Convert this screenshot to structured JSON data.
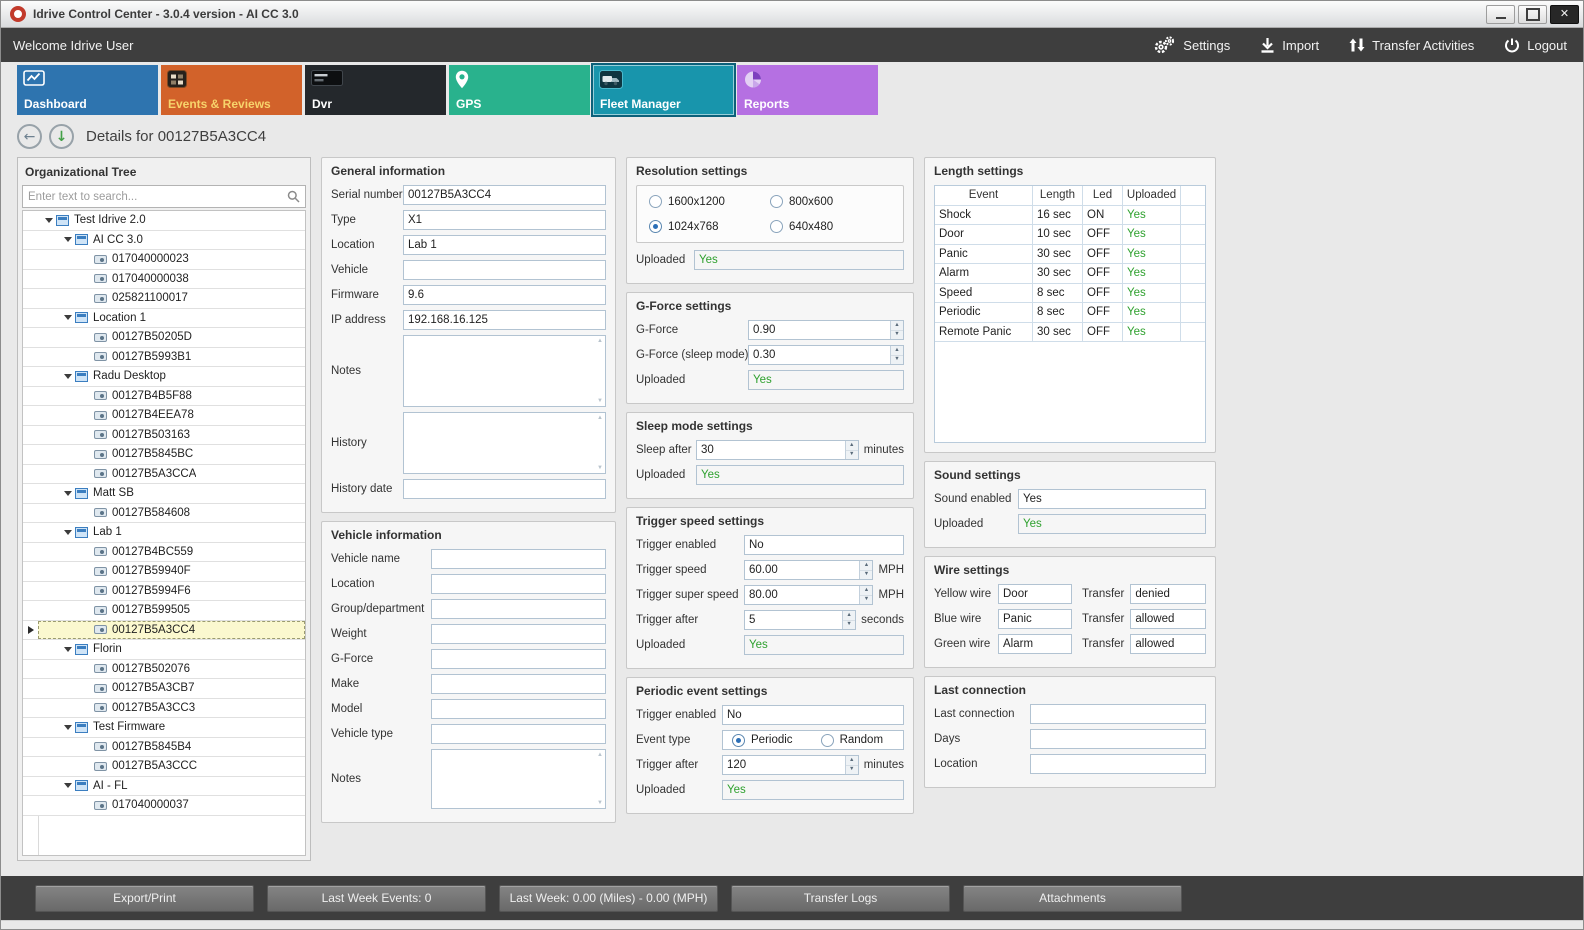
{
  "window": {
    "title": "Idrive Control Center - 3.0.4 version - AI CC 3.0"
  },
  "topbar": {
    "welcome": "Welcome Idrive User",
    "actions": [
      {
        "id": "settings",
        "label": "Settings"
      },
      {
        "id": "import",
        "label": "Import"
      },
      {
        "id": "transfer-activities",
        "label": "Transfer Activities"
      },
      {
        "id": "logout",
        "label": "Logout"
      }
    ]
  },
  "nav": {
    "tiles": [
      {
        "id": "dashboard",
        "label": "Dashboard",
        "color": "#2e74af",
        "selected": false
      },
      {
        "id": "events-reviews",
        "label": "Events & Reviews",
        "color": "#d2622a",
        "label_color": "#f7d36b",
        "selected": false
      },
      {
        "id": "dvr",
        "label": "Dvr",
        "color": "#24282c",
        "selected": false
      },
      {
        "id": "gps",
        "label": "GPS",
        "color": "#29b28d",
        "selected": false
      },
      {
        "id": "fleet-manager",
        "label": "Fleet Manager",
        "color": "#1895ac",
        "selected": true
      },
      {
        "id": "reports",
        "label": "Reports",
        "color": "#b570e2",
        "selected": false
      }
    ]
  },
  "details": {
    "title": "Details for 00127B5A3CC4"
  },
  "org_tree": {
    "title": "Organizational Tree",
    "search_placeholder": "Enter text to search...",
    "nodes": [
      {
        "label": "Test Idrive 2.0",
        "depth": 0,
        "kind": "group"
      },
      {
        "label": "AI CC 3.0",
        "depth": 1,
        "kind": "group"
      },
      {
        "label": "017040000023",
        "depth": 2,
        "kind": "device"
      },
      {
        "label": "017040000038",
        "depth": 2,
        "kind": "device"
      },
      {
        "label": "025821100017",
        "depth": 2,
        "kind": "device"
      },
      {
        "label": "Location 1",
        "depth": 1,
        "kind": "group"
      },
      {
        "label": "00127B50205D",
        "depth": 2,
        "kind": "device"
      },
      {
        "label": "00127B5993B1",
        "depth": 2,
        "kind": "device"
      },
      {
        "label": "Radu Desktop",
        "depth": 1,
        "kind": "group"
      },
      {
        "label": "00127B4B5F88",
        "depth": 2,
        "kind": "device"
      },
      {
        "label": "00127B4EEA78",
        "depth": 2,
        "kind": "device"
      },
      {
        "label": "00127B503163",
        "depth": 2,
        "kind": "device"
      },
      {
        "label": "00127B5845BC",
        "depth": 2,
        "kind": "device"
      },
      {
        "label": "00127B5A3CCA",
        "depth": 2,
        "kind": "device"
      },
      {
        "label": "Matt SB",
        "depth": 1,
        "kind": "group"
      },
      {
        "label": "00127B584608",
        "depth": 2,
        "kind": "device"
      },
      {
        "label": "Lab 1",
        "depth": 1,
        "kind": "group"
      },
      {
        "label": "00127B4BC559",
        "depth": 2,
        "kind": "device"
      },
      {
        "label": "00127B59940F",
        "depth": 2,
        "kind": "device"
      },
      {
        "label": "00127B5994F6",
        "depth": 2,
        "kind": "device"
      },
      {
        "label": "00127B599505",
        "depth": 2,
        "kind": "device"
      },
      {
        "label": "00127B5A3CC4",
        "depth": 2,
        "kind": "device",
        "selected": true
      },
      {
        "label": "Florin",
        "depth": 1,
        "kind": "group"
      },
      {
        "label": "00127B502076",
        "depth": 2,
        "kind": "device"
      },
      {
        "label": "00127B5A3CB7",
        "depth": 2,
        "kind": "device"
      },
      {
        "label": "00127B5A3CC3",
        "depth": 2,
        "kind": "device"
      },
      {
        "label": "Test Firmware",
        "depth": 1,
        "kind": "group"
      },
      {
        "label": "00127B5845B4",
        "depth": 2,
        "kind": "device"
      },
      {
        "label": "00127B5A3CCC",
        "depth": 2,
        "kind": "device"
      },
      {
        "label": "AI - FL",
        "depth": 1,
        "kind": "group"
      },
      {
        "label": "017040000037",
        "depth": 2,
        "kind": "device"
      }
    ]
  },
  "general_information": {
    "title": "General information",
    "fields": [
      {
        "label": "Serial number",
        "value": "00127B5A3CC4",
        "kind": "text"
      },
      {
        "label": "Type",
        "value": "X1",
        "kind": "text"
      },
      {
        "label": "Location",
        "value": "Lab 1",
        "kind": "text"
      },
      {
        "label": "Vehicle",
        "value": "",
        "kind": "text"
      },
      {
        "label": "Firmware",
        "value": "9.6",
        "kind": "text"
      },
      {
        "label": "IP address",
        "value": "192.168.16.125",
        "kind": "text"
      },
      {
        "label": "Notes",
        "value": "",
        "kind": "textarea"
      },
      {
        "label": "History",
        "value": "",
        "kind": "textarea"
      },
      {
        "label": "History date",
        "value": "",
        "kind": "text"
      }
    ]
  },
  "vehicle_information": {
    "title": "Vehicle information",
    "fields": [
      {
        "label": "Vehicle name",
        "value": "",
        "kind": "text"
      },
      {
        "label": "Location",
        "value": "",
        "kind": "text"
      },
      {
        "label": "Group/department",
        "value": "",
        "kind": "text"
      },
      {
        "label": "Weight",
        "value": "",
        "kind": "text"
      },
      {
        "label": "G-Force",
        "value": "",
        "kind": "text"
      },
      {
        "label": "Make",
        "value": "",
        "kind": "text"
      },
      {
        "label": "Model",
        "value": "",
        "kind": "text"
      },
      {
        "label": "Vehicle type",
        "value": "",
        "kind": "text"
      },
      {
        "label": "Notes",
        "value": "",
        "kind": "textarea"
      }
    ]
  },
  "resolution_settings": {
    "title": "Resolution settings",
    "radio_options": [
      {
        "label": "1600x1200",
        "selected": false
      },
      {
        "label": "800x600",
        "selected": false
      },
      {
        "label": "1024x768",
        "selected": true
      },
      {
        "label": "640x480",
        "selected": false
      }
    ],
    "fields": [
      {
        "label": "Uploaded",
        "value": "Yes",
        "kind": "uploaded"
      }
    ]
  },
  "gforce_settings": {
    "title": "G-Force settings",
    "fields": [
      {
        "label": "G-Force",
        "value": "0.90",
        "kind": "number"
      },
      {
        "label": "G-Force (sleep mode)",
        "value": "0.30",
        "kind": "number"
      },
      {
        "label": "Uploaded",
        "value": "Yes",
        "kind": "uploaded"
      }
    ]
  },
  "sleep_mode_settings": {
    "title": "Sleep mode settings",
    "fields": [
      {
        "label": "Sleep after",
        "value": "30",
        "kind": "number",
        "suffix": "minutes"
      },
      {
        "label": "Uploaded",
        "value": "Yes",
        "kind": "uploaded"
      }
    ]
  },
  "trigger_speed_settings": {
    "title": "Trigger speed settings",
    "fields": [
      {
        "label": "Trigger enabled",
        "value": "No",
        "kind": "text"
      },
      {
        "label": "Trigger speed",
        "value": "60.00",
        "kind": "number",
        "suffix": "MPH"
      },
      {
        "label": "Trigger super speed",
        "value": "80.00",
        "kind": "number",
        "suffix": "MPH"
      },
      {
        "label": "Trigger after",
        "value": "5",
        "kind": "number",
        "suffix": "seconds"
      },
      {
        "label": "Uploaded",
        "value": "Yes",
        "kind": "uploaded"
      }
    ]
  },
  "periodic_event_settings": {
    "title": "Periodic event settings",
    "fields": [
      {
        "label": "Trigger enabled",
        "value": "No",
        "kind": "text"
      },
      {
        "label": "Event type",
        "kind": "radio-inline",
        "options": [
          {
            "label": "Periodic",
            "selected": true
          },
          {
            "label": "Random",
            "selected": false
          }
        ]
      },
      {
        "label": "Trigger after",
        "value": "120",
        "kind": "number",
        "suffix": "minutes"
      },
      {
        "label": "Uploaded",
        "value": "Yes",
        "kind": "uploaded"
      }
    ]
  },
  "length_settings": {
    "title": "Length settings",
    "columns": [
      "Event",
      "Length",
      "Led",
      "Uploaded"
    ],
    "rows": [
      [
        "Shock",
        "16 sec",
        "ON",
        "Yes"
      ],
      [
        "Door",
        "10 sec",
        "OFF",
        "Yes"
      ],
      [
        "Panic",
        "30 sec",
        "OFF",
        "Yes"
      ],
      [
        "Alarm",
        "30 sec",
        "OFF",
        "Yes"
      ],
      [
        "Speed",
        "8 sec",
        "OFF",
        "Yes"
      ],
      [
        "Periodic",
        "8 sec",
        "OFF",
        "Yes"
      ],
      [
        "Remote Panic",
        "30 sec",
        "OFF",
        "Yes"
      ]
    ]
  },
  "sound_settings": {
    "title": "Sound settings",
    "fields": [
      {
        "label": "Sound enabled",
        "value": "Yes",
        "kind": "text"
      },
      {
        "label": "Uploaded",
        "value": "Yes",
        "kind": "uploaded"
      }
    ]
  },
  "wire_settings": {
    "title": "Wire settings",
    "transfer_label": "Transfer",
    "rows": [
      {
        "label": "Yellow wire",
        "value": "Door",
        "transfer": "denied"
      },
      {
        "label": "Blue wire",
        "value": "Panic",
        "transfer": "allowed"
      },
      {
        "label": "Green wire",
        "value": "Alarm",
        "transfer": "allowed"
      }
    ]
  },
  "last_connection": {
    "title": "Last connection",
    "fields": [
      {
        "label": "Last connection",
        "value": "",
        "kind": "text"
      },
      {
        "label": "Days",
        "value": "",
        "kind": "text"
      },
      {
        "label": "Location",
        "value": "",
        "kind": "text"
      }
    ]
  },
  "bottom_bar": {
    "buttons": [
      "Export/Print",
      "Last Week Events: 0",
      "Last Week: 0.00 (Miles) - 0.00 (MPH)",
      "Transfer Logs",
      "Attachments"
    ]
  },
  "colors": {
    "positive": "#2fa12f",
    "selected_tile_border": "#0b607a",
    "selected_row_bg": "#fbf8cf"
  }
}
